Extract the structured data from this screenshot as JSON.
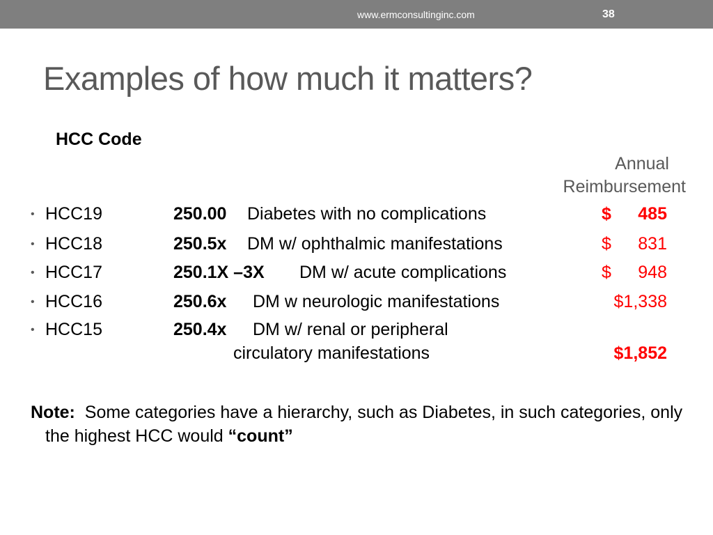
{
  "header": {
    "url": "www.ermconsultinginc.com",
    "slide_number": "38"
  },
  "slide": {
    "title": "Examples of how much it matters?",
    "hcc_code_heading": "HCC Code",
    "annual_heading_line1": "Annual",
    "annual_heading_line2": "Reimbursement",
    "rows": [
      {
        "hcc": "HCC19",
        "code": "250.00",
        "description": "Diabetes with no complications",
        "currency": "$",
        "amount": "485"
      },
      {
        "hcc": "HCC18",
        "code": "250.5x",
        "description": "DM w/ ophthalmic manifestations",
        "currency": "$",
        "amount": "831"
      },
      {
        "hcc": "HCC17",
        "code": "250.1X –3X",
        "description": "DM w/ acute complications",
        "currency": "$",
        "amount": "948"
      },
      {
        "hcc": "HCC16",
        "code": "250.6x",
        "description": "DM w neurologic manifestations",
        "amount": "$1,338"
      },
      {
        "hcc": "HCC15",
        "code": "250.4x",
        "description": "DM w/ renal or peripheral",
        "description_line2": "circulatory manifestations",
        "amount": "$1,852"
      }
    ],
    "note_label": "Note:",
    "note_text": "Some categories have a hierarchy, such as Diabetes, in such categories, only the highest HCC would",
    "note_emphasis": "“count”",
    "colors": {
      "accent": "#ff0000",
      "bar": "#7f7f7f",
      "title": "#595959"
    }
  }
}
